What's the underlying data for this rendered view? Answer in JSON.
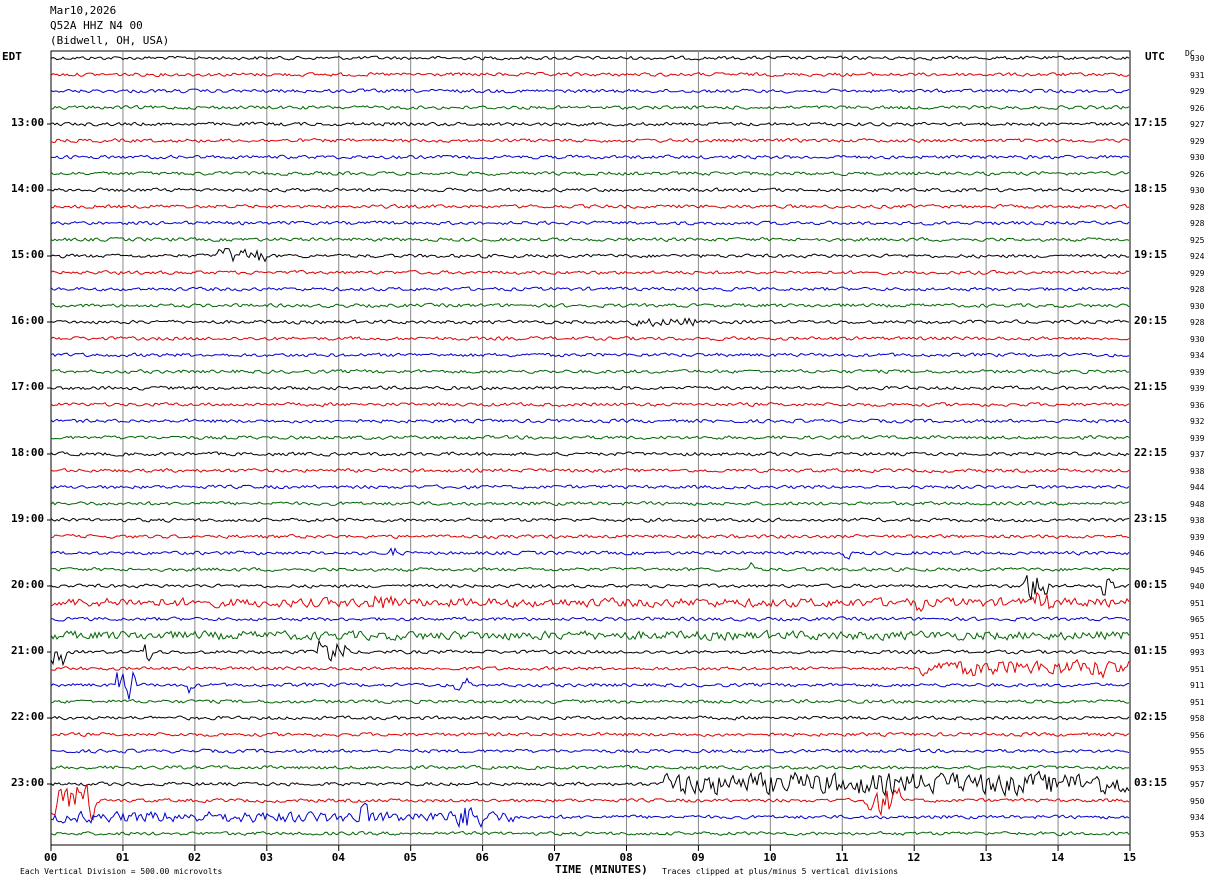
{
  "header": {
    "date": "Mar10,2026",
    "station": "Q52A HHZ N4 00",
    "location": "(Bidwell, OH, USA)"
  },
  "left_zone_label": "EDT",
  "right_zone_label": "UTC",
  "dc_header": "DC",
  "footer": {
    "left": "Each Vertical Division =  500.00 microvolts",
    "xlabel": "TIME (MINUTES)",
    "right": "Traces clipped at plus/minus 5 vertical divisions"
  },
  "colors": {
    "cycle": [
      "#000000",
      "#dd0000",
      "#0000cc",
      "#006600"
    ],
    "grid": "#888888"
  },
  "chart_data": {
    "type": "line",
    "title": "",
    "xlabel": "TIME (MINUTES)",
    "ylabel": "",
    "xlim": [
      0,
      15
    ],
    "x_ticks": [
      "00",
      "01",
      "02",
      "03",
      "04",
      "05",
      "06",
      "07",
      "08",
      "09",
      "10",
      "11",
      "12",
      "13",
      "14",
      "15"
    ],
    "left_hour_labels": [
      "13:00",
      "14:00",
      "15:00",
      "16:00",
      "17:00",
      "18:00",
      "19:00",
      "20:00",
      "21:00",
      "22:00",
      "23:00"
    ],
    "right_hour_labels": [
      "17:15",
      "18:15",
      "19:15",
      "20:15",
      "21:15",
      "22:15",
      "23:15",
      "00:15",
      "01:15",
      "02:15",
      "03:15"
    ],
    "rows_per_hour": 4,
    "row_count": 48,
    "dc_offsets": [
      930,
      931,
      929,
      926,
      927,
      929,
      930,
      926,
      930,
      928,
      928,
      925,
      924,
      929,
      928,
      930,
      928,
      930,
      934,
      939,
      939,
      936,
      932,
      939,
      937,
      938,
      944,
      948,
      938,
      939,
      946,
      945,
      940,
      951,
      965,
      951,
      993,
      951,
      911,
      951,
      958,
      956,
      955,
      953,
      957,
      950,
      934,
      953
    ],
    "grid": true
  }
}
